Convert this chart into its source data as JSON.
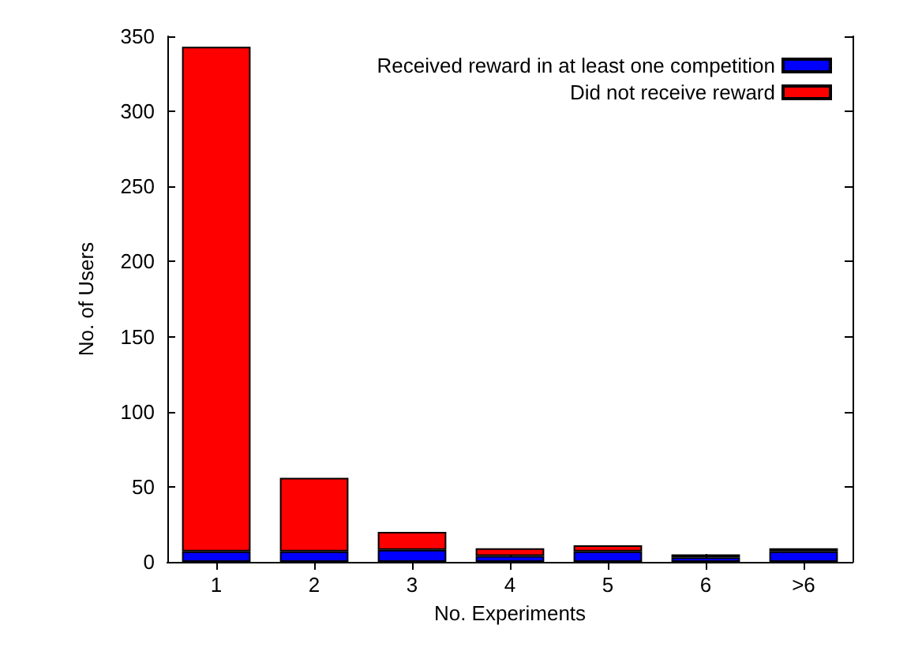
{
  "chart_data": {
    "type": "bar",
    "stacked": true,
    "xlabel": "No. Experiments",
    "ylabel": "No. of Users",
    "categories": [
      "1",
      "2",
      "3",
      "4",
      "5",
      "6",
      ">6"
    ],
    "series": [
      {
        "name": "Received reward in at least one competition",
        "color": "#0000ff",
        "values": [
          7,
          7,
          8,
          4,
          7,
          3,
          7
        ]
      },
      {
        "name": "Did not receive reward",
        "color": "#ff0000",
        "values": [
          336,
          49,
          12,
          5,
          4,
          2,
          2
        ]
      }
    ],
    "ylim": [
      0,
      350
    ],
    "yticks": [
      0,
      50,
      100,
      150,
      200,
      250,
      300,
      350
    ],
    "grid": false,
    "legend": "top right"
  }
}
